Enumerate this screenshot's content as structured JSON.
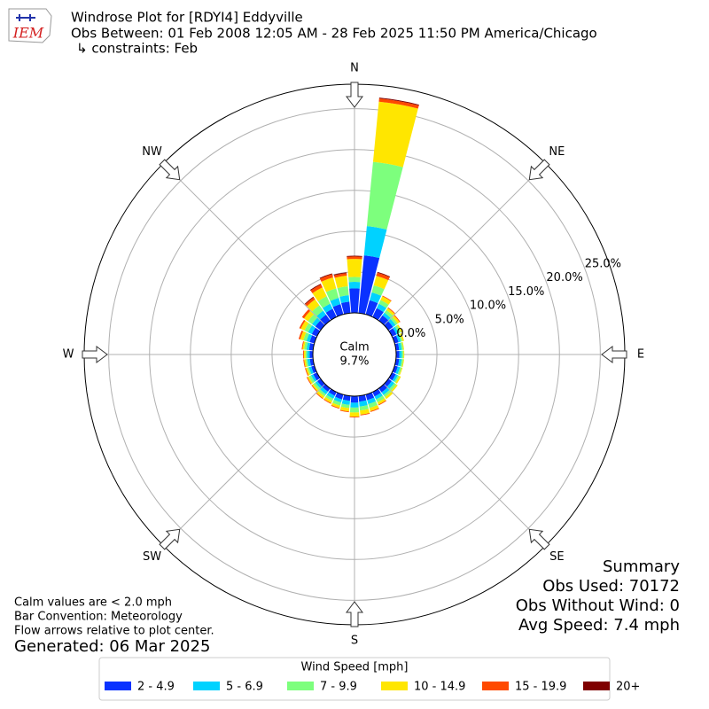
{
  "chart_data": {
    "type": "windrose",
    "title": "Windrose Plot for [RDYI4] Eddyville",
    "subtitle": "Obs Between: 01 Feb 2008 12:05 AM - 28 Feb 2025 11:50 PM America/Chicago",
    "constraints": "↳ constraints: Feb",
    "logo_text": "IEM",
    "compass_labels": [
      "N",
      "NE",
      "E",
      "SE",
      "S",
      "SW",
      "W",
      "NW"
    ],
    "calm_label": "Calm",
    "calm_value": 9.7,
    "calm_value_label": "9.7%",
    "x": [
      0,
      10,
      20,
      30,
      40,
      50,
      60,
      70,
      80,
      90,
      100,
      110,
      120,
      130,
      140,
      150,
      160,
      170,
      180,
      190,
      200,
      210,
      220,
      230,
      240,
      250,
      260,
      270,
      280,
      290,
      300,
      310,
      320,
      330,
      340,
      350
    ],
    "ylim": [
      0,
      28
    ],
    "yticks": [
      {
        "value": 0,
        "label": "0.0%"
      },
      {
        "value": 5,
        "label": "5.0%"
      },
      {
        "value": 10,
        "label": "10.0%"
      },
      {
        "value": 15,
        "label": "15.0%"
      },
      {
        "value": 20,
        "label": "20.0%"
      },
      {
        "value": 25,
        "label": "25.0%"
      }
    ],
    "grid": true,
    "legend_title": "Wind Speed [mph]",
    "series": [
      {
        "name": "2 - 4.9",
        "color": "#0a32ff",
        "values": [
          3.0,
          7.1,
          1.8,
          1.2,
          0.8,
          0.7,
          0.6,
          0.5,
          0.4,
          0.4,
          0.4,
          0.4,
          0.5,
          0.5,
          0.6,
          0.6,
          0.7,
          0.7,
          0.8,
          0.6,
          0.6,
          0.5,
          0.5,
          0.5,
          0.5,
          0.4,
          0.4,
          0.4,
          0.5,
          0.6,
          0.7,
          0.8,
          0.9,
          1.1,
          1.3,
          1.4
        ]
      },
      {
        "name": "5 - 6.9",
        "color": "#00d2ff",
        "values": [
          0.8,
          3.6,
          1.0,
          0.6,
          0.4,
          0.4,
          0.3,
          0.3,
          0.3,
          0.3,
          0.3,
          0.3,
          0.3,
          0.4,
          0.4,
          0.4,
          0.5,
          0.6,
          0.6,
          0.5,
          0.4,
          0.4,
          0.4,
          0.3,
          0.3,
          0.3,
          0.3,
          0.3,
          0.3,
          0.4,
          0.5,
          0.5,
          0.6,
          0.7,
          0.8,
          0.8
        ]
      },
      {
        "name": "7 - 9.9",
        "color": "#7dff7d",
        "values": [
          0.6,
          7.9,
          0.9,
          0.5,
          0.4,
          0.3,
          0.3,
          0.2,
          0.2,
          0.2,
          0.2,
          0.2,
          0.2,
          0.3,
          0.3,
          0.4,
          0.5,
          0.5,
          0.6,
          0.4,
          0.4,
          0.3,
          0.3,
          0.3,
          0.3,
          0.2,
          0.2,
          0.2,
          0.3,
          0.4,
          0.5,
          0.6,
          0.8,
          1.0,
          1.2,
          1.1
        ]
      },
      {
        "name": "10 - 14.9",
        "color": "#ffe600",
        "values": [
          2.2,
          7.4,
          1.2,
          0.5,
          0.3,
          0.3,
          0.2,
          0.2,
          0.1,
          0.1,
          0.1,
          0.1,
          0.2,
          0.2,
          0.3,
          0.3,
          0.4,
          0.5,
          0.5,
          0.4,
          0.3,
          0.3,
          0.3,
          0.2,
          0.2,
          0.2,
          0.2,
          0.2,
          0.2,
          0.4,
          0.5,
          0.6,
          0.9,
          1.2,
          1.4,
          1.3
        ]
      },
      {
        "name": "15 - 19.9",
        "color": "#ff4a00",
        "values": [
          0.3,
          0.4,
          0.4,
          0.1,
          0.1,
          0.1,
          0,
          0,
          0,
          0,
          0,
          0,
          0,
          0,
          0,
          0.1,
          0.1,
          0.1,
          0.1,
          0.1,
          0.1,
          0.1,
          0.1,
          0.1,
          0.1,
          0.1,
          0.1,
          0.1,
          0.1,
          0.2,
          0.2,
          0.3,
          0.3,
          0.4,
          0.4,
          0.3
        ]
      },
      {
        "name": "20+",
        "color": "#7f0000",
        "values": [
          0.1,
          0.1,
          0.1,
          0,
          0,
          0,
          0,
          0,
          0,
          0,
          0,
          0,
          0,
          0,
          0,
          0,
          0,
          0,
          0,
          0,
          0,
          0,
          0,
          0,
          0,
          0,
          0,
          0,
          0,
          0,
          0,
          0,
          0.1,
          0.1,
          0.1,
          0.1
        ]
      }
    ],
    "summary": [
      "Summary",
      "Obs Used: 70172",
      "Obs Without Wind: 0",
      "Avg Speed: 7.4 mph"
    ],
    "notes": [
      "Calm values are < 2.0 mph",
      "Bar Convention: Meteorology",
      "Flow arrows relative to plot center."
    ],
    "generated": "Generated: 06 Mar 2025"
  }
}
